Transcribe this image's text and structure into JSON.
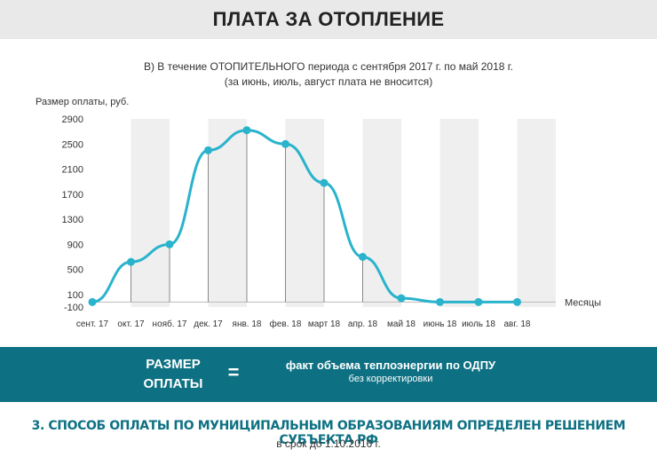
{
  "header": {
    "title": "ПЛАТА ЗА ОТОПЛЕНИЕ"
  },
  "subtitle": {
    "line1": "В) В течение ОТОПИТЕЛЬНОГО периода с сентября 2017 г. по май 2018 г.",
    "line2": "(за июнь, июль, август плата не вносится)"
  },
  "chart_data": {
    "type": "line",
    "title": "",
    "ylabel": "Размер оплаты, руб.",
    "xlabel": "Месяцы",
    "categories": [
      "сент. 17",
      "окт. 17",
      "нояб. 17",
      "дек. 17",
      "янв. 18",
      "фев. 18",
      "март 18",
      "апр. 18",
      "май 18",
      "июнь 18",
      "июль 18",
      "авг. 18"
    ],
    "series": [
      {
        "values": [
          -20,
          620,
          900,
          2400,
          2720,
          2500,
          1880,
          700,
          40,
          -20,
          -20,
          -20
        ]
      }
    ],
    "yticks": [
      -100,
      100,
      500,
      900,
      1300,
      1700,
      2100,
      2500,
      2900
    ],
    "ylim": [
      -100,
      2900
    ],
    "line_color": "#2ab3cc",
    "grid": "alternating vertical column bands"
  },
  "banner": {
    "left_line1": "РАЗМЕР",
    "left_line2": "ОПЛАТЫ",
    "equals": "=",
    "right_main": "факт объема теплоэнергии по ОДПУ",
    "right_sub": "без корректировки",
    "bg_color": "#0e7183"
  },
  "footer": {
    "main": "3. СПОСОБ ОПЛАТЫ ПО МУНИЦИПАЛЬНЫМ ОБРАЗОВАНИЯМ ОПРЕДЕЛЕН РЕШЕНИЕМ СУБЪЕКТА РФ",
    "sub": "в срок до 1.10.2016 г."
  }
}
